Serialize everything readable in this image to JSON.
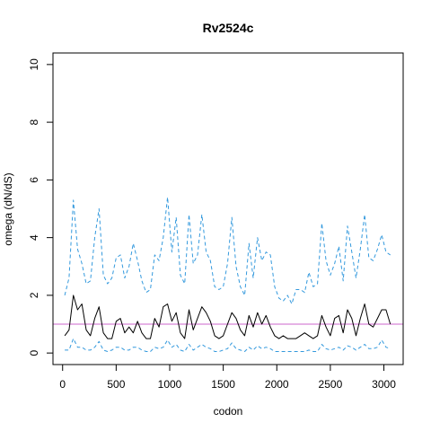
{
  "colors": {
    "estimate": "#000000",
    "interval": "#3399dd",
    "reference": "#cc66cc",
    "frame": "#000000"
  },
  "chart_data": {
    "type": "line",
    "title": "Rv2524c",
    "xlabel": "codon",
    "ylabel": "omega (dN/dS)",
    "xlim": [
      -90,
      3180
    ],
    "ylim": [
      -0.4,
      10.4
    ],
    "xticks": [
      0,
      500,
      1000,
      1500,
      2000,
      2500,
      3000
    ],
    "yticks": [
      0,
      2,
      4,
      6,
      8,
      10
    ],
    "grid": false,
    "legend": "none",
    "reference_line": {
      "y": 1.0
    },
    "x": [
      20,
      60,
      100,
      140,
      180,
      220,
      260,
      300,
      340,
      380,
      420,
      460,
      500,
      540,
      580,
      620,
      660,
      700,
      740,
      780,
      820,
      860,
      900,
      940,
      980,
      1020,
      1060,
      1100,
      1140,
      1180,
      1220,
      1260,
      1300,
      1340,
      1380,
      1420,
      1460,
      1500,
      1540,
      1580,
      1620,
      1660,
      1700,
      1740,
      1780,
      1820,
      1860,
      1900,
      1940,
      1980,
      2020,
      2060,
      2100,
      2140,
      2180,
      2220,
      2260,
      2300,
      2340,
      2380,
      2420,
      2460,
      2500,
      2540,
      2580,
      2620,
      2660,
      2700,
      2740,
      2780,
      2820,
      2860,
      2900,
      2940,
      2980,
      3020,
      3060
    ],
    "series": [
      {
        "style": "solid",
        "values": [
          0.6,
          0.8,
          2.0,
          1.5,
          1.7,
          0.8,
          0.6,
          1.2,
          1.6,
          0.7,
          0.5,
          0.5,
          1.1,
          1.2,
          0.7,
          0.9,
          0.7,
          1.1,
          0.7,
          0.5,
          0.5,
          1.2,
          0.9,
          1.6,
          1.7,
          1.1,
          1.4,
          0.7,
          0.5,
          1.5,
          0.8,
          1.2,
          1.6,
          1.4,
          1.1,
          0.6,
          0.5,
          0.6,
          1.0,
          1.4,
          1.2,
          0.8,
          0.6,
          1.3,
          0.9,
          1.4,
          1.0,
          1.3,
          0.9,
          0.6,
          0.5,
          0.6,
          0.5,
          0.5,
          0.5,
          0.6,
          0.7,
          0.6,
          0.5,
          0.6,
          1.3,
          0.9,
          0.6,
          1.2,
          1.3,
          0.7,
          1.5,
          1.2,
          0.6,
          1.2,
          1.7,
          1.0,
          0.9,
          1.2,
          1.5,
          1.5,
          1.0
        ]
      },
      {
        "style": "dashed",
        "values": [
          2.0,
          2.6,
          5.3,
          3.6,
          3.1,
          2.4,
          2.5,
          4.0,
          5.0,
          2.7,
          2.4,
          2.6,
          3.3,
          3.4,
          2.6,
          3.0,
          3.8,
          3.2,
          2.5,
          2.1,
          2.2,
          3.4,
          3.2,
          4.0,
          5.4,
          3.5,
          4.7,
          2.7,
          2.4,
          4.8,
          3.1,
          3.4,
          4.8,
          3.5,
          3.2,
          2.3,
          2.2,
          2.3,
          3.1,
          4.7,
          3.0,
          2.3,
          2.0,
          3.8,
          2.6,
          4.0,
          3.2,
          3.5,
          3.4,
          2.3,
          1.9,
          1.8,
          2.0,
          1.7,
          2.2,
          2.2,
          2.1,
          2.8,
          2.3,
          2.4,
          4.5,
          3.2,
          2.7,
          3.1,
          3.7,
          2.5,
          4.4,
          3.5,
          2.6,
          3.6,
          4.8,
          3.3,
          3.2,
          3.6,
          4.1,
          3.5,
          3.4
        ]
      },
      {
        "style": "dashed",
        "values": [
          0.1,
          0.1,
          0.5,
          0.2,
          0.2,
          0.1,
          0.1,
          0.2,
          0.4,
          0.1,
          0.05,
          0.1,
          0.2,
          0.2,
          0.1,
          0.1,
          0.2,
          0.2,
          0.1,
          0.05,
          0.05,
          0.2,
          0.15,
          0.2,
          0.45,
          0.2,
          0.3,
          0.1,
          0.05,
          0.3,
          0.1,
          0.2,
          0.3,
          0.2,
          0.15,
          0.05,
          0.05,
          0.1,
          0.15,
          0.35,
          0.15,
          0.1,
          0.05,
          0.2,
          0.1,
          0.25,
          0.15,
          0.2,
          0.15,
          0.05,
          0.05,
          0.05,
          0.05,
          0.05,
          0.05,
          0.05,
          0.05,
          0.1,
          0.05,
          0.05,
          0.3,
          0.15,
          0.1,
          0.15,
          0.2,
          0.1,
          0.25,
          0.2,
          0.1,
          0.2,
          0.3,
          0.15,
          0.15,
          0.2,
          0.45,
          0.2,
          0.15
        ]
      }
    ]
  }
}
